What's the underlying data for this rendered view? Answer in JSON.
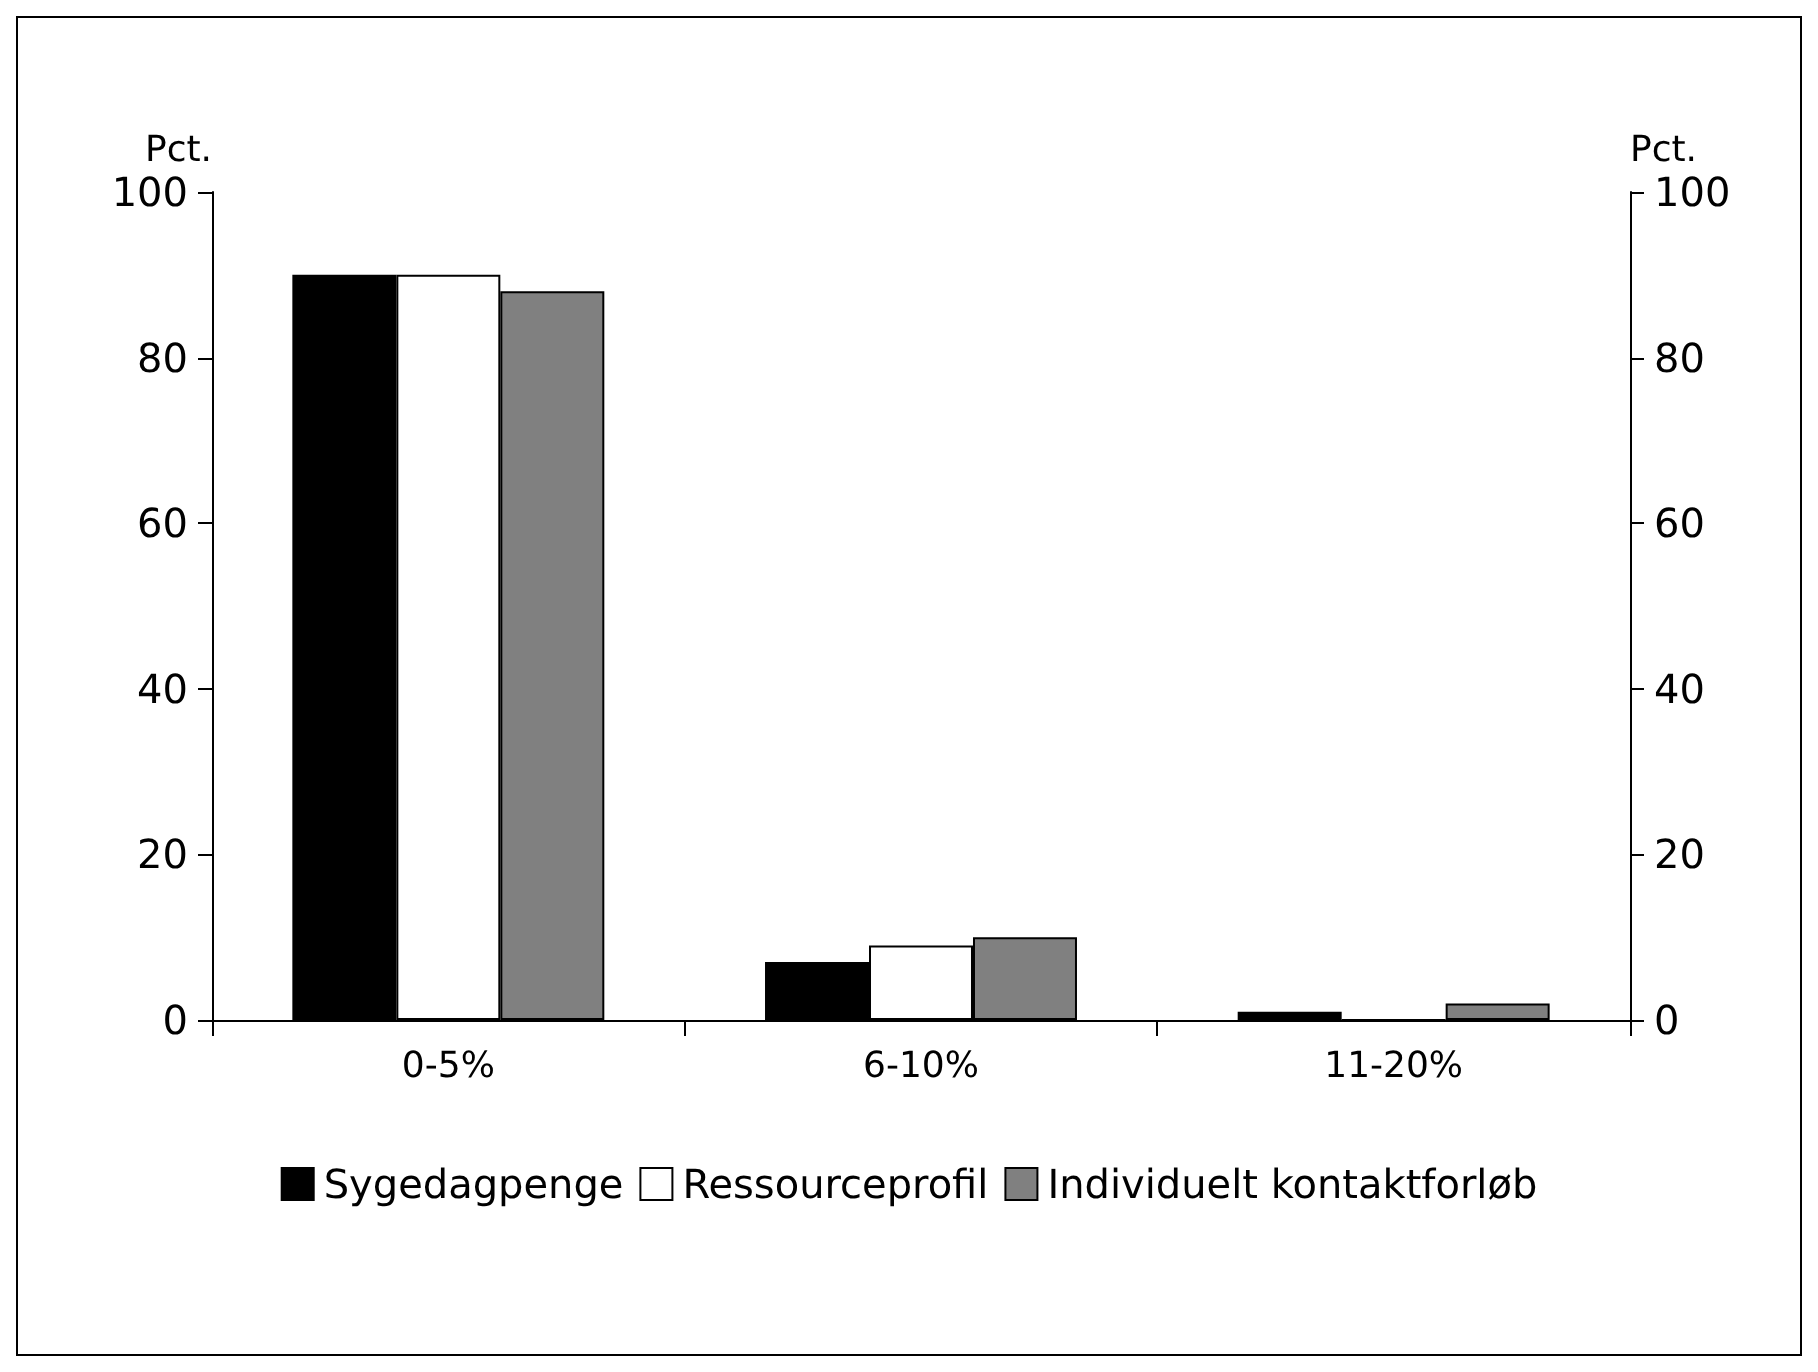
{
  "chart_data": {
    "type": "bar",
    "ylabel": "Pct.",
    "y2label": "Pct.",
    "categories": [
      "0-5%",
      "6-10%",
      "11-20%"
    ],
    "series": [
      {
        "name": "Sygedagpenge",
        "color": "#000000",
        "values": [
          90,
          7,
          1
        ]
      },
      {
        "name": "Ressourceprofil",
        "color": "#ffffff",
        "values": [
          90,
          9,
          0
        ]
      },
      {
        "name": "Individuelt kontaktforløb",
        "color": "#808080",
        "values": [
          88,
          10,
          2
        ]
      }
    ],
    "ylim": [
      0,
      100
    ],
    "yticks": [
      0,
      20,
      40,
      60,
      80,
      100
    ],
    "y2lim": [
      0,
      100
    ],
    "y2ticks": [
      0,
      20,
      40,
      60,
      80,
      100
    ],
    "grid": false,
    "legend": "bottom"
  }
}
